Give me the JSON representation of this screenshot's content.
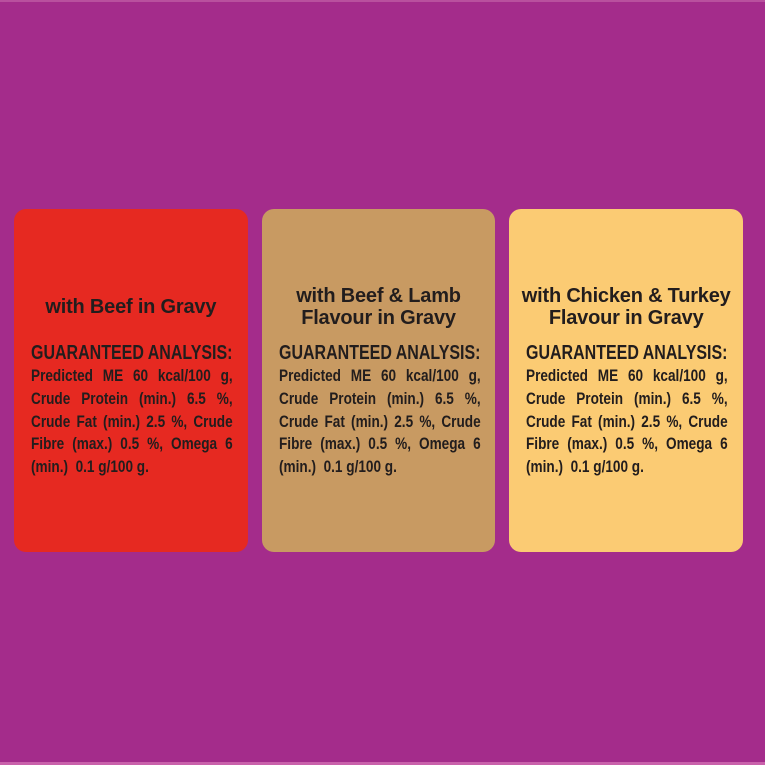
{
  "image": {
    "background_color": "#A42C8B",
    "top_edge_line_color": "#C05CA4",
    "bottom_edge_line_color": "#D06BB0",
    "text_color": "#221D1D"
  },
  "panels": [
    {
      "name": "beef-in-gravy",
      "background_color": "#E62921",
      "title_lines": [
        "with Beef in Gravy"
      ],
      "analysis": {
        "heading": "GUARANTEED ANALYSIS:",
        "lines": [
          "Predicted ME 60 kcal/100 g,",
          "Crude Protein (min.) 6.5 %,",
          "Crude Fat (min.) 2.5 %, Crude",
          "Fibre (max.) 0.5 %, Omega 6",
          "(min.)  0.1 g/100 g."
        ]
      }
    },
    {
      "name": "beef-lamb-flavour-in-gravy",
      "background_color": "#C89A62",
      "title_lines": [
        "with Beef & Lamb",
        "Flavour in Gravy"
      ],
      "analysis": {
        "heading": "GUARANTEED ANALYSIS:",
        "lines": [
          "Predicted ME 60 kcal/100 g,",
          "Crude Protein (min.) 6.5 %,",
          "Crude Fat (min.) 2.5 %, Crude",
          "Fibre (max.) 0.5 %, Omega 6",
          "(min.)  0.1 g/100 g."
        ]
      }
    },
    {
      "name": "chicken-turkey-flavour-in-gravy",
      "background_color": "#FBCB73",
      "title_lines": [
        "with Chicken & Turkey",
        "Flavour in Gravy"
      ],
      "analysis": {
        "heading": "GUARANTEED ANALYSIS:",
        "lines": [
          "Predicted ME 60 kcal/100 g,",
          "Crude Protein (min.) 6.5 %,",
          "Crude Fat (min.) 2.5 %, Crude",
          "Fibre (max.) 0.5 %, Omega 6",
          "(min.)  0.1 g/100 g."
        ]
      }
    }
  ]
}
